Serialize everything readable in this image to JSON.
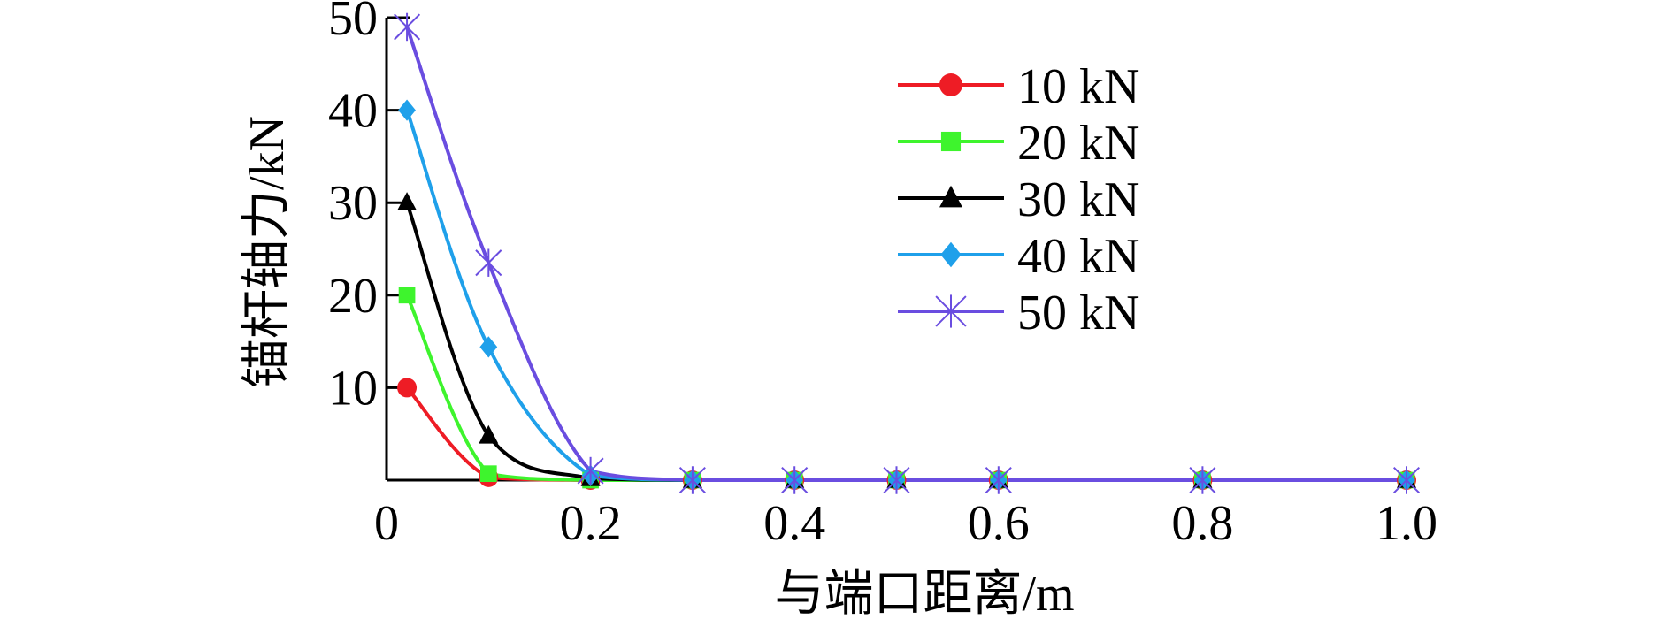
{
  "chart_data": {
    "type": "line",
    "xlabel": "与端口距离/m",
    "ylabel": "锚杆轴力/kN",
    "xlim": [
      0,
      1.0
    ],
    "ylim": [
      0,
      50
    ],
    "xticks": [
      0,
      0.2,
      0.4,
      0.6,
      0.8,
      1.0
    ],
    "xtick_labels": [
      "0",
      "0.2",
      "0.4",
      "0.6",
      "0.8",
      "1.0"
    ],
    "yticks": [
      10,
      20,
      30,
      40,
      50
    ],
    "ytick_labels": [
      "10",
      "20",
      "30",
      "40",
      "50"
    ],
    "grid": false,
    "legend_position": "top-right",
    "x": [
      0.02,
      0.1,
      0.2,
      0.3,
      0.4,
      0.5,
      0.6,
      0.8,
      1.0
    ],
    "series": [
      {
        "name": "10 kN",
        "color": "#ee1c25",
        "marker": "circle",
        "values": [
          10,
          0.3,
          0,
          0,
          0,
          0,
          0,
          0,
          0
        ]
      },
      {
        "name": "20 kN",
        "color": "#3ef42d",
        "marker": "square",
        "values": [
          20,
          0.7,
          0,
          0,
          0,
          0,
          0,
          0,
          0
        ]
      },
      {
        "name": "30 kN",
        "color": "#000000",
        "marker": "triangle",
        "values": [
          30,
          4.8,
          0.2,
          0,
          0,
          0,
          0,
          0,
          0
        ]
      },
      {
        "name": "40 kN",
        "color": "#1fa0ea",
        "marker": "diamond",
        "values": [
          40,
          14.4,
          0.5,
          0,
          0,
          0,
          0,
          0,
          0
        ]
      },
      {
        "name": "50 kN",
        "color": "#6a4de0",
        "marker": "star",
        "values": [
          49,
          23.5,
          1.0,
          0,
          0,
          0,
          0,
          0,
          0
        ]
      }
    ]
  }
}
